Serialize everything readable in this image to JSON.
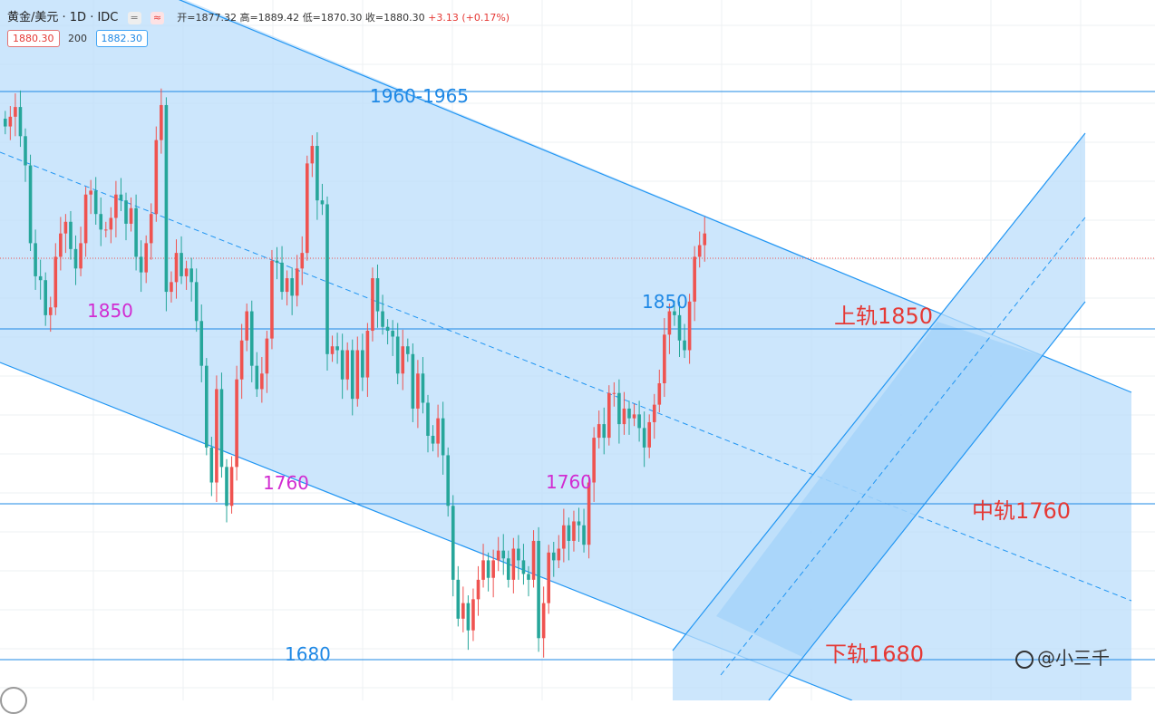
{
  "header": {
    "symbol": "黄金/美元 · 1D · IDC",
    "pill_1": "=",
    "pill_2": "≈",
    "open": "开=1877.32",
    "high": "高=1889.42",
    "low": "低=1870.30",
    "close": "收=1880.30",
    "change": "+3.13 (+0.17%)"
  },
  "price_row": {
    "bid": "1880.30",
    "spread": "200",
    "ask": "1882.30"
  },
  "watermark": "@小三千",
  "colors": {
    "up": "#ef5350",
    "down": "#26a69a",
    "channel_fill": "#bbdefb",
    "channel_line": "#2196f3",
    "label_magenta": "#d12cd1",
    "label_blue": "#1e88e5",
    "label_red": "#e53935"
  },
  "chart_data": {
    "type": "candlestick",
    "symbol": "XAU/USD",
    "timeframe": "1D",
    "grid": true,
    "ylim": [
      1640,
      2000
    ],
    "horizontal_levels": [
      1960,
      1850,
      1760,
      1680
    ],
    "labels": [
      {
        "text": "1960-1965",
        "value": 1962,
        "color": "blue"
      },
      {
        "text": "1850",
        "value": 1850,
        "color": "magenta",
        "pos": "left"
      },
      {
        "text": "1850",
        "value": 1850,
        "color": "blue",
        "pos": "middle"
      },
      {
        "text": "上轨1850",
        "value": 1850,
        "color": "red"
      },
      {
        "text": "1760",
        "value": 1760,
        "color": "magenta",
        "pos": "left"
      },
      {
        "text": "1760",
        "value": 1760,
        "color": "magenta",
        "pos": "middle"
      },
      {
        "text": "中轨1760",
        "value": 1760,
        "color": "red"
      },
      {
        "text": "1680",
        "value": 1680,
        "color": "blue"
      },
      {
        "text": "下轨1680",
        "value": 1680,
        "color": "red"
      }
    ],
    "last_price": 1880.3,
    "closes": [
      1935,
      1940,
      1945,
      1930,
      1915,
      1875,
      1858,
      1856,
      1838,
      1842,
      1868,
      1880,
      1886,
      1872,
      1862,
      1875,
      1900,
      1902,
      1890,
      1882,
      1882,
      1888,
      1900,
      1897,
      1885,
      1893,
      1868,
      1860,
      1875,
      1890,
      1928,
      1946,
      1850,
      1855,
      1870,
      1858,
      1862,
      1855,
      1835,
      1812,
      1770,
      1752,
      1800,
      1760,
      1740,
      1760,
      1805,
      1825,
      1840,
      1812,
      1800,
      1808,
      1826,
      1866,
      1865,
      1850,
      1857,
      1848,
      1862,
      1870,
      1916,
      1925,
      1897,
      1895,
      1818,
      1822,
      1820,
      1805,
      1820,
      1795,
      1820,
      1806,
      1830,
      1857,
      1840,
      1832,
      1830,
      1827,
      1808,
      1822,
      1818,
      1790,
      1808,
      1793,
      1776,
      1772,
      1785,
      1766,
      1740,
      1702,
      1682,
      1690,
      1676,
      1692,
      1702,
      1712,
      1703,
      1712,
      1717,
      1713,
      1702,
      1718,
      1712,
      1705,
      1702,
      1722,
      1672,
      1690,
      1716,
      1712,
      1718,
      1730,
      1722,
      1732,
      1730,
      1720,
      1752,
      1775,
      1782,
      1775,
      1798,
      1798,
      1782,
      1790,
      1785,
      1787,
      1780,
      1770,
      1783,
      1792,
      1803,
      1828,
      1840,
      1838,
      1825,
      1820,
      1845,
      1868,
      1874,
      1880
    ]
  }
}
